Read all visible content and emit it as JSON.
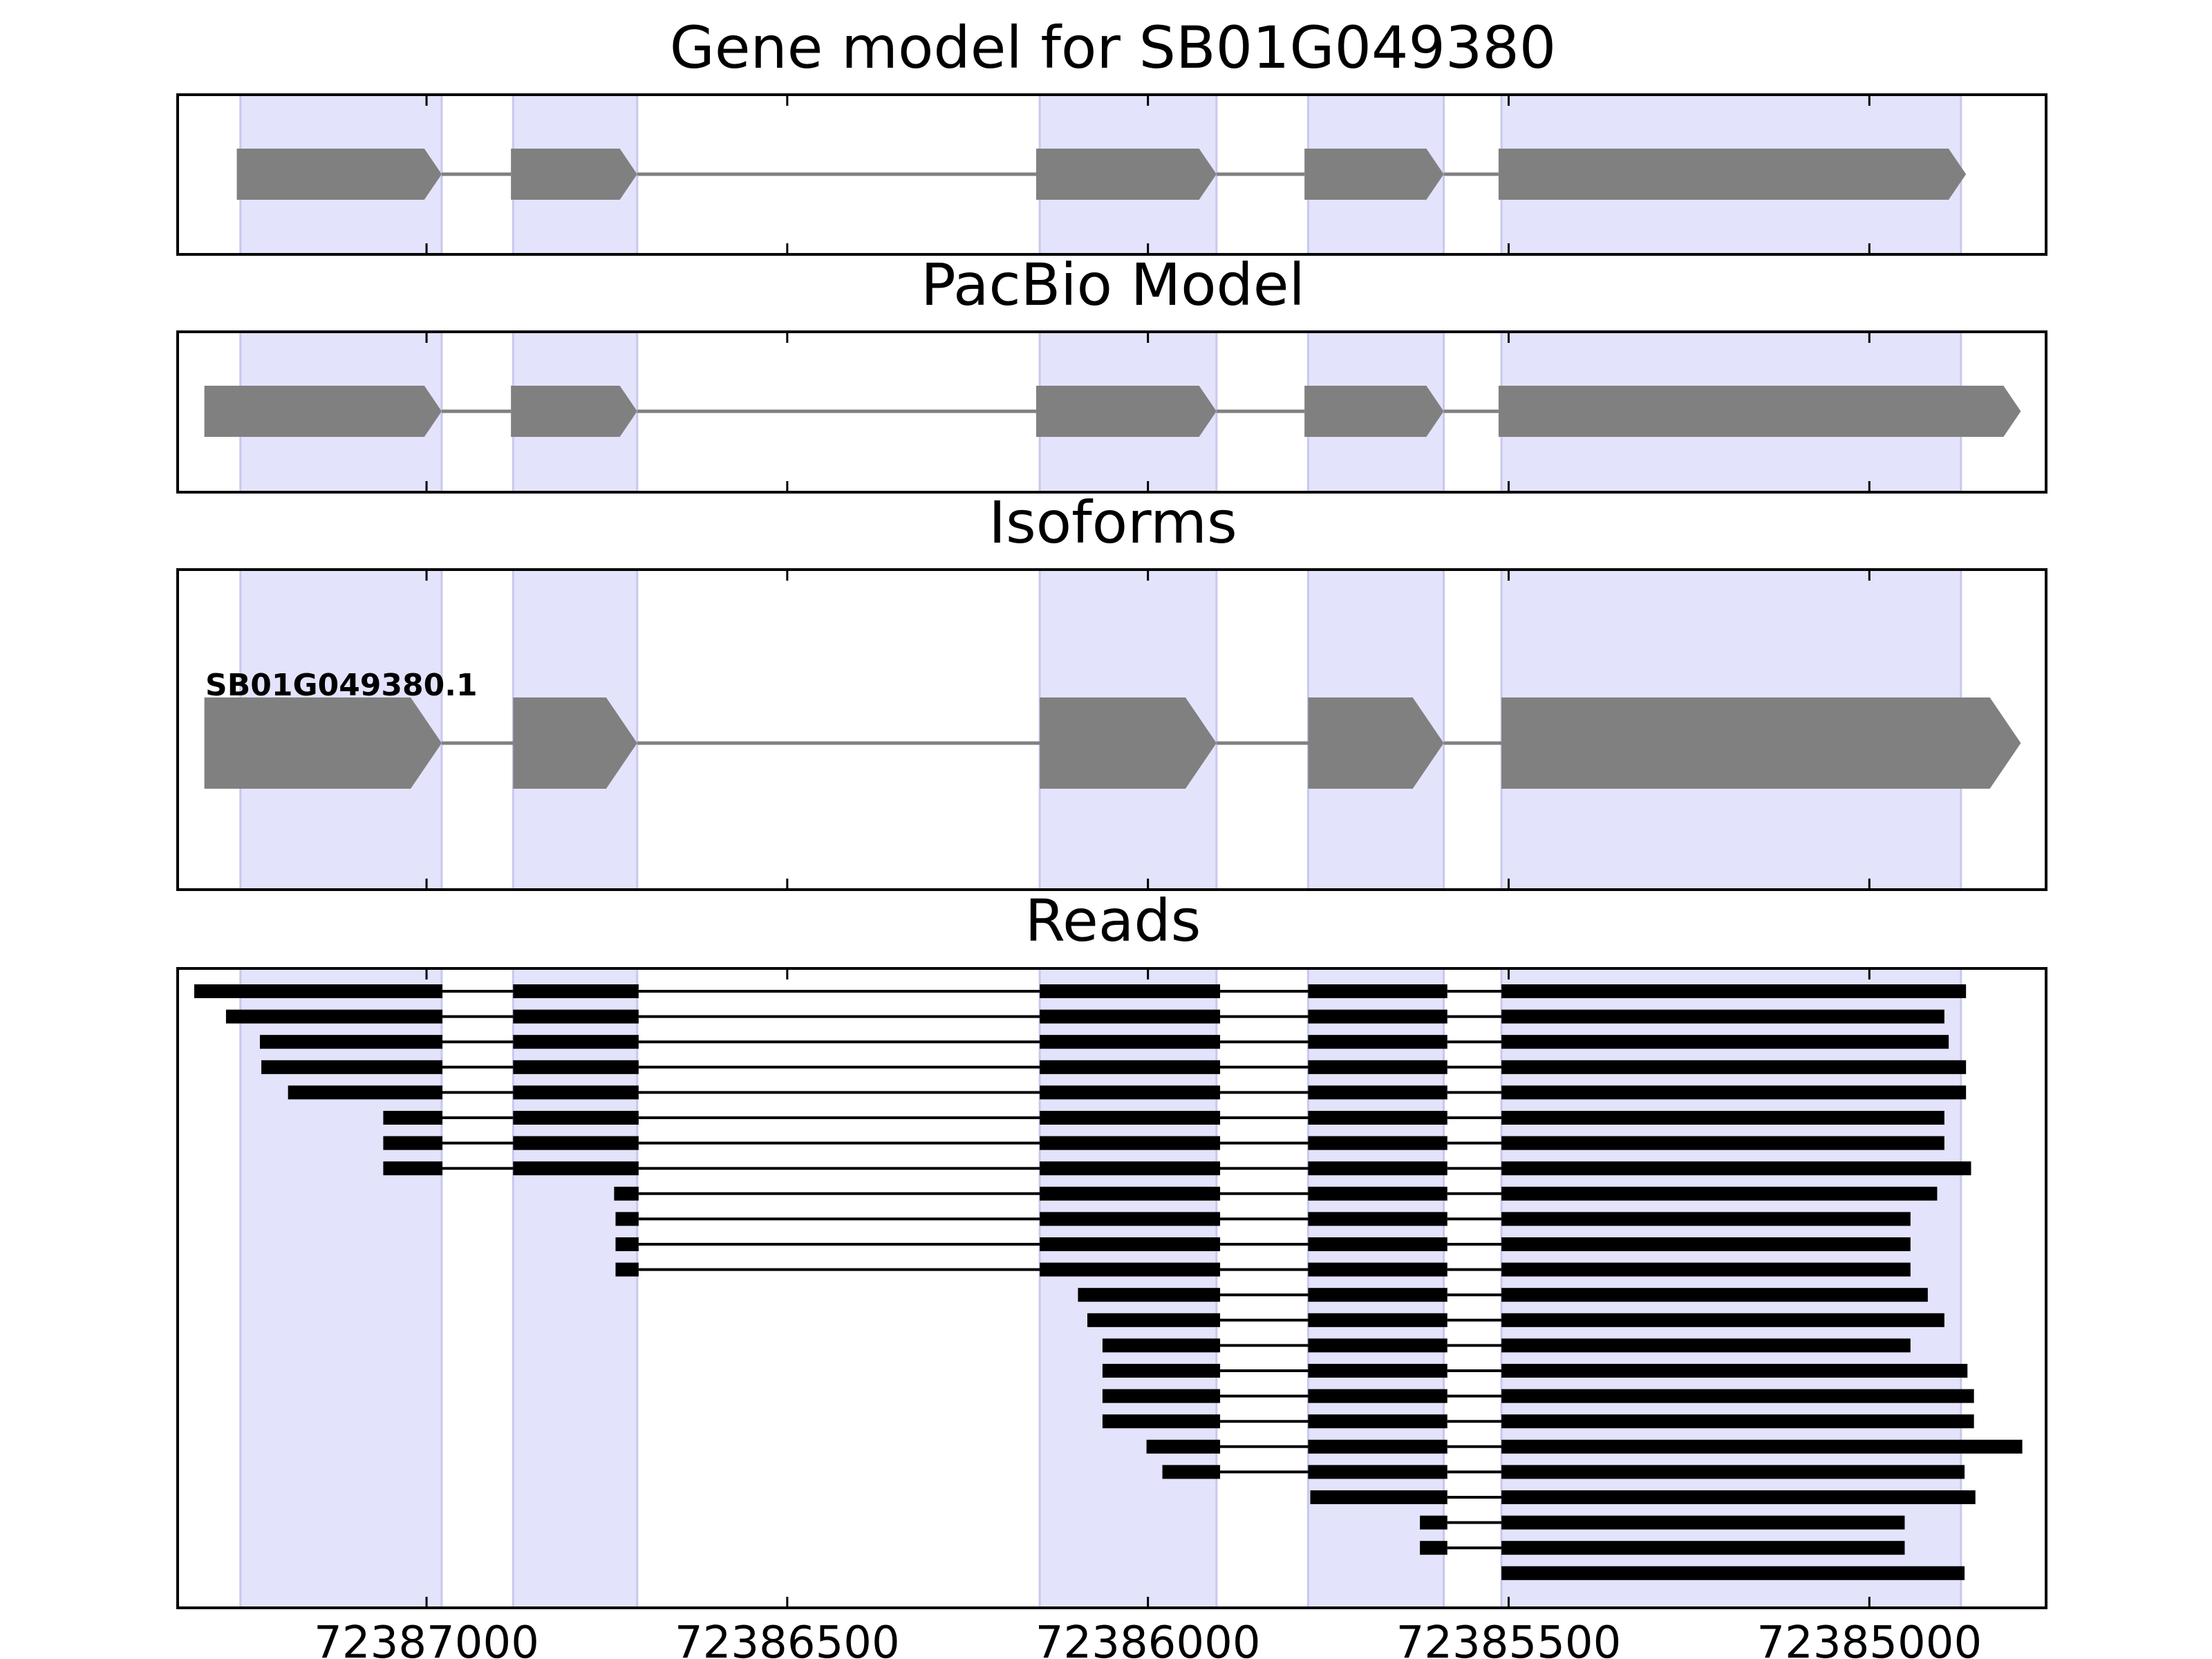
{
  "titles": {
    "gene_model": "Gene model for SB01G049380",
    "pacbio": "PacBio Model",
    "isoforms": "Isoforms",
    "reads": "Reads"
  },
  "colors": {
    "exon_highlight": "#e3e3fb",
    "highlight_edge": "#c8c8ee",
    "model_fill": "#808080",
    "read_fill": "#000000",
    "frame": "#000000"
  },
  "chart_data": {
    "type": "gene-structure",
    "x_axis": {
      "direction": "descending",
      "xlim": [
        72387345,
        72384755
      ],
      "ticks": [
        72387000,
        72386500,
        72386000,
        72385500,
        72385000
      ],
      "tick_labels": [
        "72387000",
        "72386500",
        "72386000",
        "72385500",
        "72385000"
      ]
    },
    "exon_regions": [
      [
        72387258,
        72386979
      ],
      [
        72386880,
        72386708
      ],
      [
        72386150,
        72385905
      ],
      [
        72385778,
        72385590
      ],
      [
        72385510,
        72384873
      ]
    ],
    "gene_model": {
      "exons": [
        [
          72387263,
          72386979
        ],
        [
          72386883,
          72386708
        ],
        [
          72386155,
          72385905
        ],
        [
          72385783,
          72385590
        ],
        [
          72385514,
          72384866
        ]
      ]
    },
    "pacbio_model": {
      "exons": [
        [
          72387308,
          72386979
        ],
        [
          72386883,
          72386708
        ],
        [
          72386155,
          72385905
        ],
        [
          72385783,
          72385590
        ],
        [
          72385514,
          72384790
        ]
      ]
    },
    "isoforms": [
      {
        "name": "SB01G049380.1",
        "exons": [
          [
            72387308,
            72386979
          ],
          [
            72386880,
            72386708
          ],
          [
            72386150,
            72385905
          ],
          [
            72385778,
            72385590
          ],
          [
            72385510,
            72384790
          ]
        ]
      }
    ],
    "reads": [
      {
        "exons": [
          [
            72387322,
            72386978
          ],
          [
            72386880,
            72386706
          ],
          [
            72386150,
            72385900
          ],
          [
            72385778,
            72385585
          ],
          [
            72385510,
            72384866
          ]
        ]
      },
      {
        "exons": [
          [
            72387278,
            72386978
          ],
          [
            72386880,
            72386706
          ],
          [
            72386150,
            72385900
          ],
          [
            72385778,
            72385585
          ],
          [
            72385510,
            72384896
          ]
        ]
      },
      {
        "exons": [
          [
            72387231,
            72386978
          ],
          [
            72386880,
            72386706
          ],
          [
            72386150,
            72385900
          ],
          [
            72385778,
            72385585
          ],
          [
            72385510,
            72384890
          ]
        ]
      },
      {
        "exons": [
          [
            72387229,
            72386978
          ],
          [
            72386880,
            72386706
          ],
          [
            72386150,
            72385900
          ],
          [
            72385778,
            72385585
          ],
          [
            72385510,
            72384866
          ]
        ]
      },
      {
        "exons": [
          [
            72387192,
            72386978
          ],
          [
            72386880,
            72386706
          ],
          [
            72386150,
            72385900
          ],
          [
            72385778,
            72385585
          ],
          [
            72385510,
            72384866
          ]
        ]
      },
      {
        "exons": [
          [
            72387060,
            72386978
          ],
          [
            72386880,
            72386706
          ],
          [
            72386150,
            72385900
          ],
          [
            72385778,
            72385585
          ],
          [
            72385510,
            72384896
          ]
        ]
      },
      {
        "exons": [
          [
            72387060,
            72386978
          ],
          [
            72386880,
            72386706
          ],
          [
            72386150,
            72385900
          ],
          [
            72385778,
            72385585
          ],
          [
            72385510,
            72384896
          ]
        ]
      },
      {
        "exons": [
          [
            72387060,
            72386978
          ],
          [
            72386880,
            72386706
          ],
          [
            72386150,
            72385900
          ],
          [
            72385778,
            72385585
          ],
          [
            72385510,
            72384859
          ]
        ]
      },
      {
        "exons": [
          [
            72386740,
            72386706
          ],
          [
            72386150,
            72385900
          ],
          [
            72385778,
            72385585
          ],
          [
            72385510,
            72384906
          ]
        ]
      },
      {
        "exons": [
          [
            72386738,
            72386706
          ],
          [
            72386150,
            72385900
          ],
          [
            72385778,
            72385585
          ],
          [
            72385510,
            72384943
          ]
        ]
      },
      {
        "exons": [
          [
            72386738,
            72386706
          ],
          [
            72386150,
            72385900
          ],
          [
            72385778,
            72385585
          ],
          [
            72385510,
            72384943
          ]
        ]
      },
      {
        "exons": [
          [
            72386738,
            72386706
          ],
          [
            72386150,
            72385900
          ],
          [
            72385778,
            72385585
          ],
          [
            72385510,
            72384943
          ]
        ]
      },
      {
        "exons": [
          [
            72386097,
            72385900
          ],
          [
            72385778,
            72385585
          ],
          [
            72385510,
            72384919
          ]
        ]
      },
      {
        "exons": [
          [
            72386084,
            72385900
          ],
          [
            72385778,
            72385585
          ],
          [
            72385510,
            72384896
          ]
        ]
      },
      {
        "exons": [
          [
            72386063,
            72385900
          ],
          [
            72385778,
            72385585
          ],
          [
            72385510,
            72384943
          ]
        ]
      },
      {
        "exons": [
          [
            72386063,
            72385900
          ],
          [
            72385778,
            72385585
          ],
          [
            72385510,
            72384864
          ]
        ]
      },
      {
        "exons": [
          [
            72386063,
            72385900
          ],
          [
            72385778,
            72385585
          ],
          [
            72385510,
            72384855
          ]
        ]
      },
      {
        "exons": [
          [
            72386063,
            72385900
          ],
          [
            72385778,
            72385585
          ],
          [
            72385510,
            72384855
          ]
        ]
      },
      {
        "exons": [
          [
            72386002,
            72385900
          ],
          [
            72385778,
            72385585
          ],
          [
            72385510,
            72384788
          ]
        ]
      },
      {
        "exons": [
          [
            72385980,
            72385900
          ],
          [
            72385778,
            72385585
          ],
          [
            72385510,
            72384868
          ]
        ]
      },
      {
        "exons": [
          [
            72385775,
            72385585
          ],
          [
            72385510,
            72384853
          ]
        ]
      },
      {
        "exons": [
          [
            72385623,
            72385585
          ],
          [
            72385510,
            72384951
          ]
        ]
      },
      {
        "exons": [
          [
            72385623,
            72385585
          ],
          [
            72385510,
            72384951
          ]
        ]
      },
      {
        "exons": [
          [
            72385510,
            72384868
          ]
        ]
      }
    ]
  }
}
